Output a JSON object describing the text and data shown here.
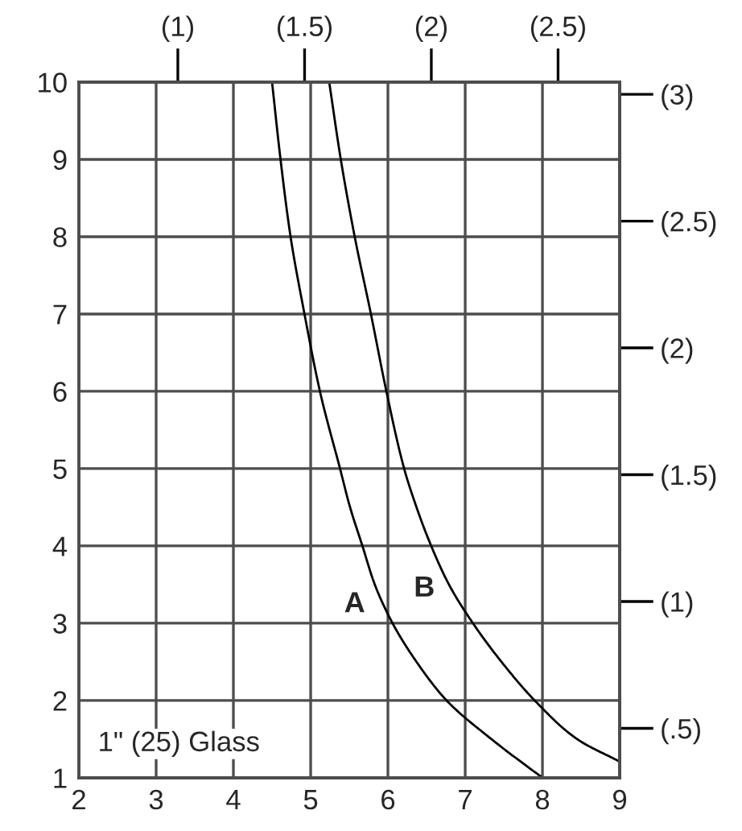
{
  "chart_data": {
    "type": "line",
    "xlim": [
      2,
      9
    ],
    "xticks": [
      2,
      3,
      4,
      5,
      6,
      7,
      8,
      9
    ],
    "ylim": [
      1,
      10
    ],
    "yticks": [
      1,
      2,
      3,
      4,
      5,
      6,
      7,
      8,
      9,
      10
    ],
    "x2lim": [
      0.6096,
      2.7432
    ],
    "x2ticks": [
      {
        "value": 1,
        "label": "(1)"
      },
      {
        "value": 1.5,
        "label": "(1.5)"
      },
      {
        "value": 2,
        "label": "(2)"
      },
      {
        "value": 2.5,
        "label": "(2.5)"
      }
    ],
    "y2lim": [
      0.3048,
      3.048
    ],
    "y2ticks": [
      {
        "value": 0.5,
        "label": "(.5)"
      },
      {
        "value": 1,
        "label": "(1)"
      },
      {
        "value": 1.5,
        "label": "(1.5)"
      },
      {
        "value": 2,
        "label": "(2)"
      },
      {
        "value": 2.5,
        "label": "(2.5)"
      },
      {
        "value": 3,
        "label": "(3)"
      }
    ],
    "grid": true,
    "series": [
      {
        "name": "A",
        "color": "#000000",
        "x": [
          4.5,
          4.61,
          4.74,
          4.92,
          5.12,
          5.38,
          5.51,
          5.67,
          5.83,
          6.06,
          6.37,
          6.76,
          7.34,
          8.0
        ],
        "values": [
          10,
          9,
          8,
          7,
          6,
          5,
          4.5,
          4,
          3.5,
          3,
          2.5,
          2,
          1.5,
          1
        ]
      },
      {
        "name": "B",
        "color": "#000000",
        "x": [
          5.24,
          5.39,
          5.57,
          5.78,
          5.98,
          6.21,
          6.37,
          6.56,
          6.79,
          7.1,
          7.47,
          7.9,
          8.45,
          9.0
        ],
        "values": [
          10,
          9,
          8,
          7,
          6,
          5,
          4.5,
          4,
          3.5,
          3,
          2.5,
          2,
          1.5,
          1.21
        ]
      }
    ],
    "annotations": [
      "1\" (25) Glass"
    ]
  }
}
